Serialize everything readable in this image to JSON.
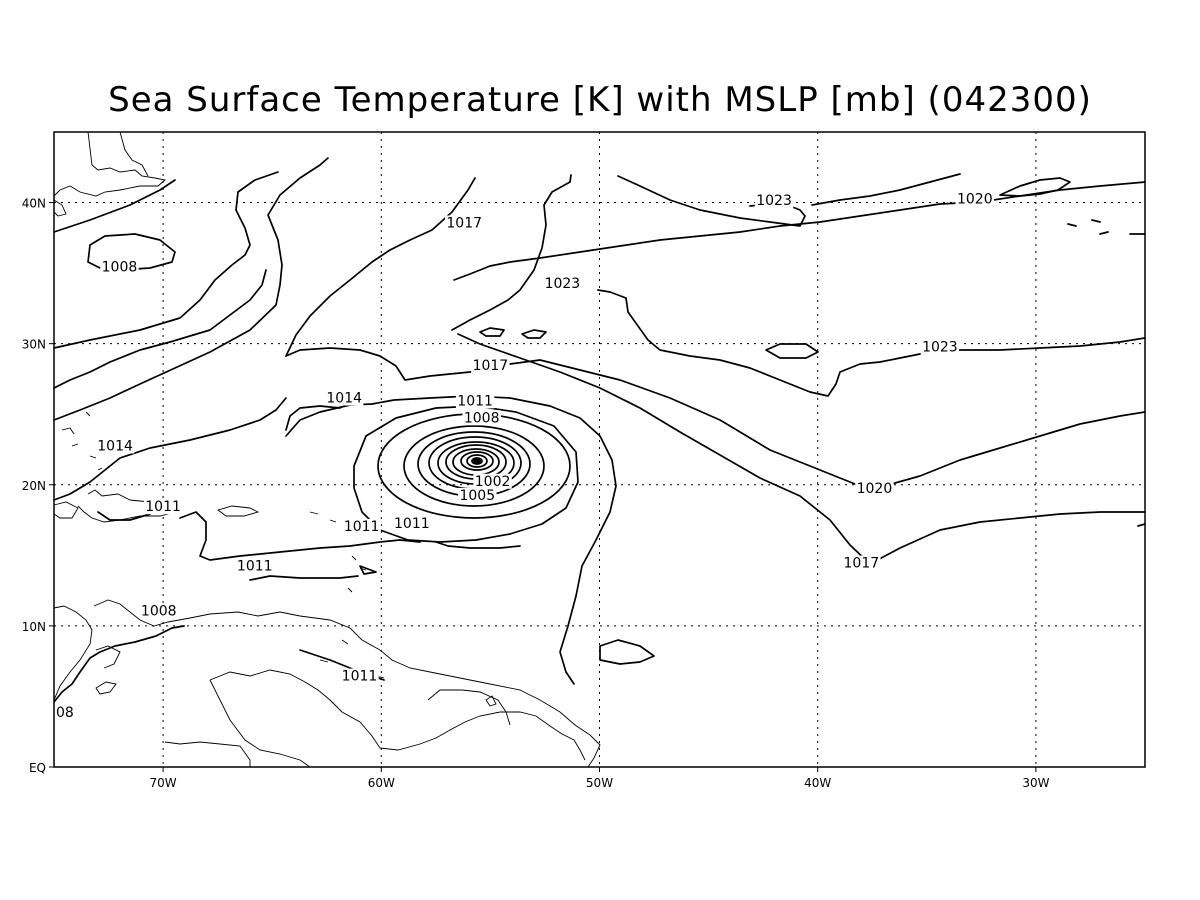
{
  "title": "Sea Surface Temperature [K] with MSLP [mb] (042300)",
  "map": {
    "projection": "latitude-longitude",
    "lon_range": [
      -75,
      -25
    ],
    "lat_range": [
      0,
      45
    ],
    "grid": "dotted",
    "lon_ticks": [
      {
        "value": -70,
        "label": "70W"
      },
      {
        "value": -60,
        "label": "60W"
      },
      {
        "value": -50,
        "label": "50W"
      },
      {
        "value": -40,
        "label": "40W"
      },
      {
        "value": -30,
        "label": "30W"
      }
    ],
    "lat_ticks": [
      {
        "value": 0,
        "label": "EQ"
      },
      {
        "value": 10,
        "label": "10N"
      },
      {
        "value": 20,
        "label": "20N"
      },
      {
        "value": 30,
        "label": "30N"
      },
      {
        "value": 40,
        "label": "40N"
      }
    ]
  },
  "contour_labels": [
    {
      "text": "1008",
      "lon": -72.0,
      "lat": 35.2
    },
    {
      "text": "1017",
      "lon": -56.2,
      "lat": 38.3
    },
    {
      "text": "1023",
      "lon": -42.0,
      "lat": 39.9
    },
    {
      "text": "1020",
      "lon": -32.8,
      "lat": 40.0
    },
    {
      "text": "1023",
      "lon": -51.7,
      "lat": 34.0
    },
    {
      "text": "1023",
      "lon": -34.4,
      "lat": 29.5
    },
    {
      "text": "1017",
      "lon": -55.0,
      "lat": 28.2
    },
    {
      "text": "1014",
      "lon": -61.7,
      "lat": 25.9
    },
    {
      "text": "1011",
      "lon": -55.7,
      "lat": 25.7
    },
    {
      "text": "1008",
      "lon": -55.4,
      "lat": 24.5
    },
    {
      "text": "1014",
      "lon": -72.2,
      "lat": 22.5
    },
    {
      "text": "1002",
      "lon": -54.9,
      "lat": 20.0
    },
    {
      "text": "1005",
      "lon": -55.6,
      "lat": 19.0
    },
    {
      "text": "1020",
      "lon": -37.4,
      "lat": 19.5
    },
    {
      "text": "1011",
      "lon": -70.0,
      "lat": 18.2
    },
    {
      "text": "1011",
      "lon": -58.6,
      "lat": 17.0
    },
    {
      "text": "1011",
      "lon": -60.9,
      "lat": 16.8
    },
    {
      "text": "1017",
      "lon": -38.0,
      "lat": 14.2
    },
    {
      "text": "1011",
      "lon": -65.8,
      "lat": 14.0
    },
    {
      "text": "1008",
      "lon": -70.2,
      "lat": 10.8
    },
    {
      "text": "1011",
      "lon": -61.0,
      "lat": 6.2
    },
    {
      "text": "08",
      "lon": -74.5,
      "lat": 3.6
    }
  ]
}
